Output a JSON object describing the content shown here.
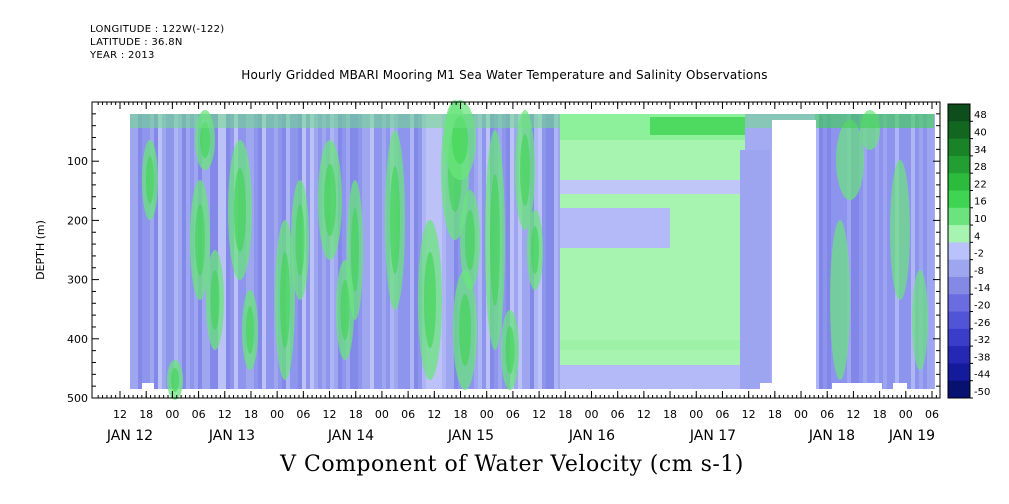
{
  "metadata": {
    "longitude": "LONGITUDE : 122W(-122)",
    "latitude": "LATITUDE : 36.8N",
    "year": "YEAR : 2013"
  },
  "title": "Hourly Gridded MBARI Mooring M1 Sea Water Temperature and Salinity Observations",
  "plot_title": "V Component of Water Velocity (cm s-1)",
  "chart_data": {
    "type": "heatmap",
    "title": "Hourly Gridded MBARI Mooring M1 Sea Water Temperature and Salinity Observations",
    "ylabel": "DEPTH (m)",
    "xlabel": "",
    "ylim": [
      500,
      0
    ],
    "yticks": [
      100,
      200,
      300,
      400,
      500
    ],
    "x_hour_ticks": [
      "12",
      "18",
      "00",
      "06",
      "12",
      "18",
      "00",
      "06",
      "12",
      "18",
      "00",
      "06",
      "12",
      "18",
      "00",
      "06",
      "12",
      "18",
      "00",
      "06",
      "12",
      "18",
      "00",
      "06",
      "12",
      "18",
      "00",
      "06",
      "12",
      "18",
      "00",
      "06"
    ],
    "x_day_labels": [
      "JAN 12",
      "JAN 13",
      "JAN 14",
      "JAN 15",
      "JAN 16",
      "JAN 17",
      "JAN 18",
      "JAN 19"
    ],
    "colorbar": {
      "levels": [
        "48",
        "40",
        "34",
        "28",
        "22",
        "16",
        "10",
        "4",
        "-2",
        "-8",
        "-14",
        "-20",
        "-26",
        "-32",
        "-38",
        "-44",
        "-50"
      ],
      "colors": [
        "#0e4d1c",
        "#13661f",
        "#1a8227",
        "#229e33",
        "#2bbb3d",
        "#3fd451",
        "#6be47e",
        "#a6f4b0",
        "#b9c2fa",
        "#9ea6f0",
        "#8489e6",
        "#6a6de0",
        "#5254d8",
        "#3a3dc8",
        "#2428b3",
        "#141a9c",
        "#07116f"
      ]
    },
    "missing_data": [
      {
        "label": "gap",
        "depth_range": [
          30,
          500
        ],
        "time": "JAN 17 22:00 - JAN 18 05:00"
      }
    ]
  }
}
